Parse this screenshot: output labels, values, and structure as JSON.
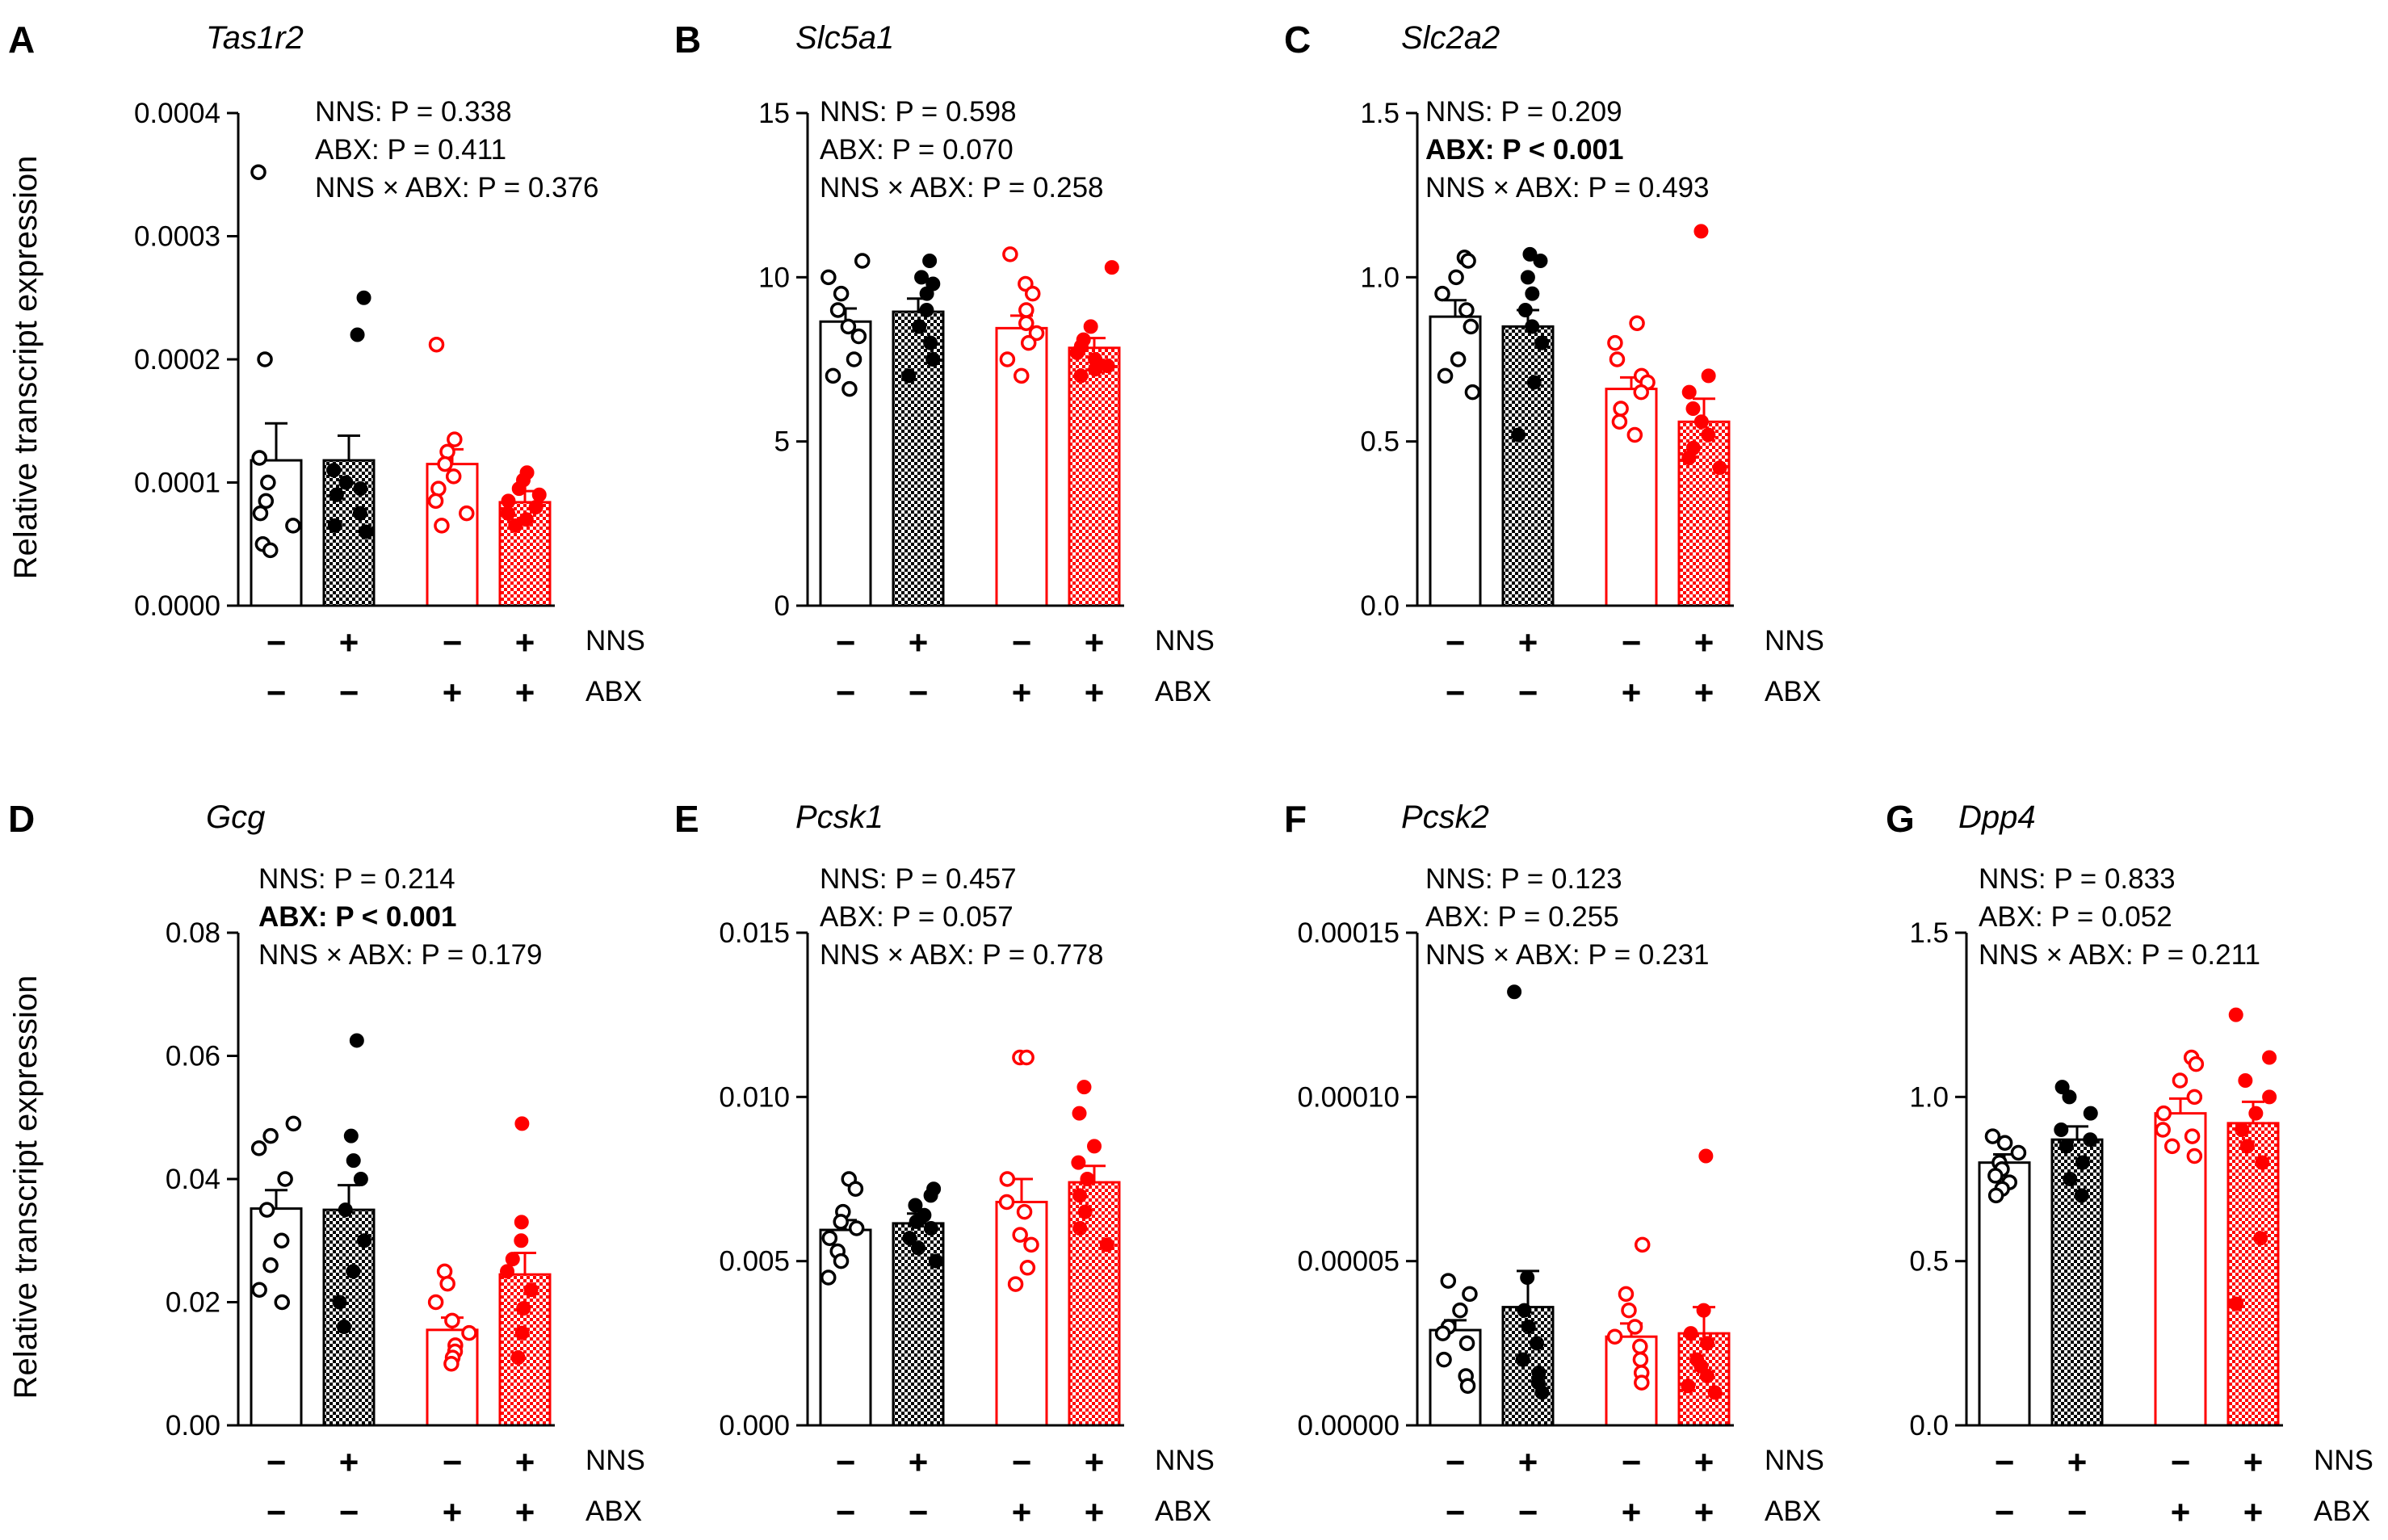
{
  "figure": {
    "y_axis_label": "Relative transcript expression",
    "factor_row_labels": [
      "NNS",
      "ABX"
    ],
    "groups": [
      {
        "nns": "−",
        "abx": "−",
        "color": "#000000",
        "fill": "solid-white"
      },
      {
        "nns": "+",
        "abx": "−",
        "color": "#000000",
        "fill": "checker"
      },
      {
        "nns": "−",
        "abx": "+",
        "color": "#ff0000",
        "fill": "solid-white"
      },
      {
        "nns": "+",
        "abx": "+",
        "color": "#ff0000",
        "fill": "checker"
      }
    ],
    "colors": {
      "control": "#000000",
      "abx": "#ff0000"
    }
  },
  "chart_data": [
    {
      "type": "bar",
      "letter": "A",
      "title": "Tas1r2",
      "categories": [
        "NNS−/ABX−",
        "NNS+/ABX−",
        "NNS−/ABX+",
        "NNS+/ABX+"
      ],
      "values": [
        0.000118,
        0.000118,
        0.000115,
        8.4e-05
      ],
      "sem": [
        3e-05,
        2e-05,
        1.2e-05,
        9e-06
      ],
      "points": [
        [
          0.000352,
          0.0002,
          0.00012,
          0.0001,
          8.5e-05,
          7.5e-05,
          6.5e-05,
          5e-05,
          4.5e-05
        ],
        [
          0.00025,
          0.00022,
          0.00011,
          0.0001,
          9.5e-05,
          9e-05,
          7.5e-05,
          6.5e-05,
          6e-05
        ],
        [
          0.000212,
          0.000135,
          0.000125,
          0.000115,
          0.000105,
          9.5e-05,
          8.5e-05,
          7.5e-05,
          6.5e-05
        ],
        [
          0.000108,
          0.000102,
          9.5e-05,
          9e-05,
          8.5e-05,
          8e-05,
          7.5e-05,
          7e-05,
          6.5e-05
        ]
      ],
      "ylim": [
        0,
        0.0004
      ],
      "yticks": [
        "0.0000",
        "0.0001",
        "0.0002",
        "0.0003",
        "0.0004"
      ],
      "ytick_values": [
        0,
        0.0001,
        0.0002,
        0.0003,
        0.0004
      ],
      "stats": [
        {
          "text": "NNS: P = 0.338",
          "bold": false
        },
        {
          "text": "ABX: P = 0.411",
          "bold": false
        },
        {
          "text": "NNS × ABX: P = 0.376",
          "bold": false
        }
      ]
    },
    {
      "type": "bar",
      "letter": "B",
      "title": "Slc5a1",
      "categories": [
        "NNS−/ABX−",
        "NNS+/ABX−",
        "NNS−/ABX+",
        "NNS+/ABX+"
      ],
      "values": [
        8.65,
        8.95,
        8.45,
        7.85
      ],
      "sem": [
        0.4,
        0.4,
        0.38,
        0.3
      ],
      "points": [
        [
          10.5,
          10.0,
          9.5,
          9.0,
          8.5,
          8.2,
          7.5,
          7.0,
          6.6
        ],
        [
          10.5,
          10.0,
          9.8,
          9.5,
          9.0,
          8.5,
          8.0,
          7.5,
          7.0
        ],
        [
          10.7,
          9.8,
          9.5,
          9.0,
          8.6,
          8.3,
          8.0,
          7.5,
          7.0
        ],
        [
          10.3,
          8.5,
          8.1,
          7.9,
          7.7,
          7.5,
          7.3,
          7.2,
          7.0
        ]
      ],
      "ylim": [
        0,
        15
      ],
      "yticks": [
        "0",
        "5",
        "10",
        "15"
      ],
      "ytick_values": [
        0,
        5,
        10,
        15
      ],
      "stats": [
        {
          "text": "NNS: P = 0.598",
          "bold": false
        },
        {
          "text": "ABX: P = 0.070",
          "bold": false
        },
        {
          "text": "NNS × ABX: P = 0.258",
          "bold": false
        }
      ]
    },
    {
      "type": "bar",
      "letter": "C",
      "title": "Slc2a2",
      "categories": [
        "NNS−/ABX−",
        "NNS+/ABX−",
        "NNS−/ABX+",
        "NNS+/ABX+"
      ],
      "values": [
        0.88,
        0.85,
        0.66,
        0.56
      ],
      "sem": [
        0.05,
        0.05,
        0.035,
        0.07
      ],
      "points": [
        [
          1.06,
          1.05,
          1.0,
          0.95,
          0.9,
          0.85,
          0.75,
          0.7,
          0.65
        ],
        [
          1.07,
          1.05,
          1.0,
          0.95,
          0.9,
          0.85,
          0.8,
          0.68,
          0.52
        ],
        [
          0.86,
          0.8,
          0.75,
          0.7,
          0.68,
          0.65,
          0.6,
          0.56,
          0.52
        ],
        [
          1.14,
          0.7,
          0.65,
          0.6,
          0.56,
          0.52,
          0.48,
          0.45,
          0.42
        ]
      ],
      "ylim": [
        0,
        1.5
      ],
      "yticks": [
        "0.0",
        "0.5",
        "1.0",
        "1.5"
      ],
      "ytick_values": [
        0,
        0.5,
        1.0,
        1.5
      ],
      "stats": [
        {
          "text": "NNS: P = 0.209",
          "bold": false
        },
        {
          "text": "ABX: P < 0.001",
          "bold": true
        },
        {
          "text": "NNS × ABX: P = 0.493",
          "bold": false
        }
      ]
    },
    {
      "type": "bar",
      "letter": "D",
      "title": "Gcg",
      "categories": [
        "NNS−/ABX−",
        "NNS+/ABX−",
        "NNS−/ABX+",
        "NNS+/ABX+"
      ],
      "values": [
        0.0352,
        0.035,
        0.0155,
        0.0245
      ],
      "sem": [
        0.003,
        0.004,
        0.002,
        0.0035
      ],
      "points": [
        [
          0.049,
          0.047,
          0.045,
          0.04,
          0.035,
          0.03,
          0.026,
          0.022,
          0.02
        ],
        [
          0.0625,
          0.047,
          0.043,
          0.04,
          0.035,
          0.03,
          0.025,
          0.02,
          0.016
        ],
        [
          0.025,
          0.023,
          0.02,
          0.017,
          0.015,
          0.013,
          0.012,
          0.011,
          0.01
        ],
        [
          0.049,
          0.033,
          0.03,
          0.027,
          0.025,
          0.022,
          0.019,
          0.015,
          0.011
        ]
      ],
      "ylim": [
        0,
        0.08
      ],
      "yticks": [
        "0.00",
        "0.02",
        "0.04",
        "0.06",
        "0.08"
      ],
      "ytick_values": [
        0,
        0.02,
        0.04,
        0.06,
        0.08
      ],
      "stats": [
        {
          "text": "NNS: P = 0.214",
          "bold": false
        },
        {
          "text": "ABX: P < 0.001",
          "bold": true
        },
        {
          "text": "NNS × ABX: P = 0.179",
          "bold": false
        }
      ]
    },
    {
      "type": "bar",
      "letter": "E",
      "title": "Pcsk1",
      "categories": [
        "NNS−/ABX−",
        "NNS+/ABX−",
        "NNS−/ABX+",
        "NNS+/ABX+"
      ],
      "values": [
        0.00595,
        0.00615,
        0.0068,
        0.0074
      ],
      "sem": [
        0.0003,
        0.0003,
        0.0007,
        0.0005
      ],
      "points": [
        [
          0.0075,
          0.0072,
          0.0065,
          0.0062,
          0.006,
          0.0057,
          0.0053,
          0.005,
          0.0045
        ],
        [
          0.0072,
          0.007,
          0.0067,
          0.0064,
          0.0062,
          0.006,
          0.0057,
          0.0054,
          0.005
        ],
        [
          0.0112,
          0.0112,
          0.0075,
          0.0068,
          0.0065,
          0.0058,
          0.0055,
          0.0048,
          0.0043
        ],
        [
          0.0103,
          0.0095,
          0.0085,
          0.008,
          0.0075,
          0.007,
          0.0065,
          0.006,
          0.0055
        ]
      ],
      "ylim": [
        0,
        0.015
      ],
      "yticks": [
        "0.000",
        "0.005",
        "0.010",
        "0.015"
      ],
      "ytick_values": [
        0,
        0.005,
        0.01,
        0.015
      ],
      "stats": [
        {
          "text": "NNS: P = 0.457",
          "bold": false
        },
        {
          "text": "ABX: P = 0.057",
          "bold": false
        },
        {
          "text": "NNS × ABX: P = 0.778",
          "bold": false
        }
      ]
    },
    {
      "type": "bar",
      "letter": "F",
      "title": "Pcsk2",
      "categories": [
        "NNS−/ABX−",
        "NNS+/ABX−",
        "NNS−/ABX+",
        "NNS+/ABX+"
      ],
      "values": [
        2.9e-05,
        3.6e-05,
        2.7e-05,
        2.8e-05
      ],
      "sem": [
        3e-06,
        1.1e-05,
        4e-06,
        8e-06
      ],
      "points": [
        [
          4.4e-05,
          4e-05,
          3.5e-05,
          3e-05,
          2.8e-05,
          2.5e-05,
          2e-05,
          1.5e-05,
          1.2e-05
        ],
        [
          0.000132,
          4.5e-05,
          3.5e-05,
          3e-05,
          2.5e-05,
          2e-05,
          1.6e-05,
          1.3e-05,
          1e-05
        ],
        [
          5.5e-05,
          4e-05,
          3.5e-05,
          3e-05,
          2.7e-05,
          2.4e-05,
          2e-05,
          1.6e-05,
          1.3e-05
        ],
        [
          8.2e-05,
          3.5e-05,
          2.8e-05,
          2.5e-05,
          2e-05,
          1.8e-05,
          1.5e-05,
          1.2e-05,
          1e-05
        ]
      ],
      "ylim": [
        0,
        0.00015
      ],
      "yticks": [
        "0.00000",
        "0.00005",
        "0.00010",
        "0.00015"
      ],
      "ytick_values": [
        0,
        5e-05,
        0.0001,
        0.00015
      ],
      "stats": [
        {
          "text": "NNS: P = 0.123",
          "bold": false
        },
        {
          "text": "ABX: P = 0.255",
          "bold": false
        },
        {
          "text": "NNS × ABX: P = 0.231",
          "bold": false
        }
      ]
    },
    {
      "type": "bar",
      "letter": "G",
      "title": "Dpp4",
      "categories": [
        "NNS−/ABX−",
        "NNS+/ABX−",
        "NNS−/ABX+",
        "NNS+/ABX+"
      ],
      "values": [
        0.8,
        0.87,
        0.95,
        0.92
      ],
      "sem": [
        0.025,
        0.04,
        0.045,
        0.065
      ],
      "points": [
        [
          0.88,
          0.86,
          0.83,
          0.8,
          0.78,
          0.76,
          0.74,
          0.72,
          0.7
        ],
        [
          1.03,
          1.0,
          0.95,
          0.9,
          0.87,
          0.85,
          0.8,
          0.75,
          0.7
        ],
        [
          1.12,
          1.1,
          1.05,
          1.0,
          0.95,
          0.9,
          0.88,
          0.85,
          0.82
        ],
        [
          1.25,
          1.12,
          1.05,
          1.0,
          0.95,
          0.9,
          0.85,
          0.8,
          0.57,
          0.37
        ]
      ],
      "ylim": [
        0,
        1.5
      ],
      "yticks": [
        "0.0",
        "0.5",
        "1.0",
        "1.5"
      ],
      "ytick_values": [
        0,
        0.5,
        1.0,
        1.5
      ],
      "stats": [
        {
          "text": "NNS: P = 0.833",
          "bold": false
        },
        {
          "text": "ABX: P = 0.052",
          "bold": false
        },
        {
          "text": "NNS × ABX: P = 0.211",
          "bold": false
        }
      ]
    }
  ]
}
